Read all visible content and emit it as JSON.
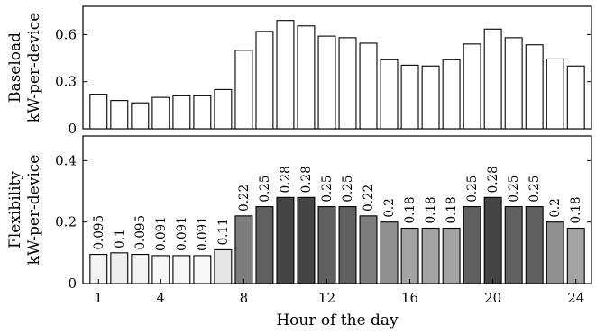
{
  "chart_data": [
    {
      "type": "bar",
      "x": [
        1,
        2,
        3,
        4,
        5,
        6,
        7,
        8,
        9,
        10,
        11,
        12,
        13,
        14,
        15,
        16,
        17,
        18,
        19,
        20,
        21,
        22,
        23,
        24
      ],
      "values": [
        0.22,
        0.18,
        0.165,
        0.2,
        0.21,
        0.21,
        0.25,
        0.5,
        0.62,
        0.69,
        0.655,
        0.59,
        0.58,
        0.545,
        0.44,
        0.405,
        0.4,
        0.44,
        0.54,
        0.635,
        0.58,
        0.535,
        0.445,
        0.4
      ],
      "ylabel_line1": "Baseload",
      "ylabel_line2": "kW-per-device",
      "yticks": [
        "0",
        "0.3",
        "0.6"
      ],
      "ylim": [
        0,
        0.78
      ],
      "bar_color": "#ffffff"
    },
    {
      "type": "bar",
      "x": [
        1,
        2,
        3,
        4,
        5,
        6,
        7,
        8,
        9,
        10,
        11,
        12,
        13,
        14,
        15,
        16,
        17,
        18,
        19,
        20,
        21,
        22,
        23,
        24
      ],
      "values": [
        0.095,
        0.1,
        0.095,
        0.091,
        0.091,
        0.091,
        0.11,
        0.22,
        0.25,
        0.28,
        0.28,
        0.25,
        0.25,
        0.22,
        0.2,
        0.18,
        0.18,
        0.18,
        0.25,
        0.28,
        0.25,
        0.25,
        0.2,
        0.18
      ],
      "data_labels": [
        "0.095",
        "0.1",
        "0.095",
        "0.091",
        "0.091",
        "0.091",
        "0.11",
        "0.22",
        "0.25",
        "0.28",
        "0.28",
        "0.25",
        "0.25",
        "0.22",
        "0.2",
        "0.18",
        "0.18",
        "0.18",
        "0.25",
        "0.28",
        "0.25",
        "0.25",
        "0.2",
        "0.18"
      ],
      "ylabel_line1": "Flexibility",
      "ylabel_line2": "kW-per-device",
      "yticks": [
        "0",
        "0.2",
        "0.4"
      ],
      "ylim": [
        0,
        0.48
      ],
      "xticks": [
        "1",
        "4",
        "8",
        "12",
        "16",
        "20",
        "24"
      ],
      "xlabel": "Hour of the day",
      "bar_color_scale": [
        "#f7f7f7",
        "#444444"
      ]
    }
  ]
}
